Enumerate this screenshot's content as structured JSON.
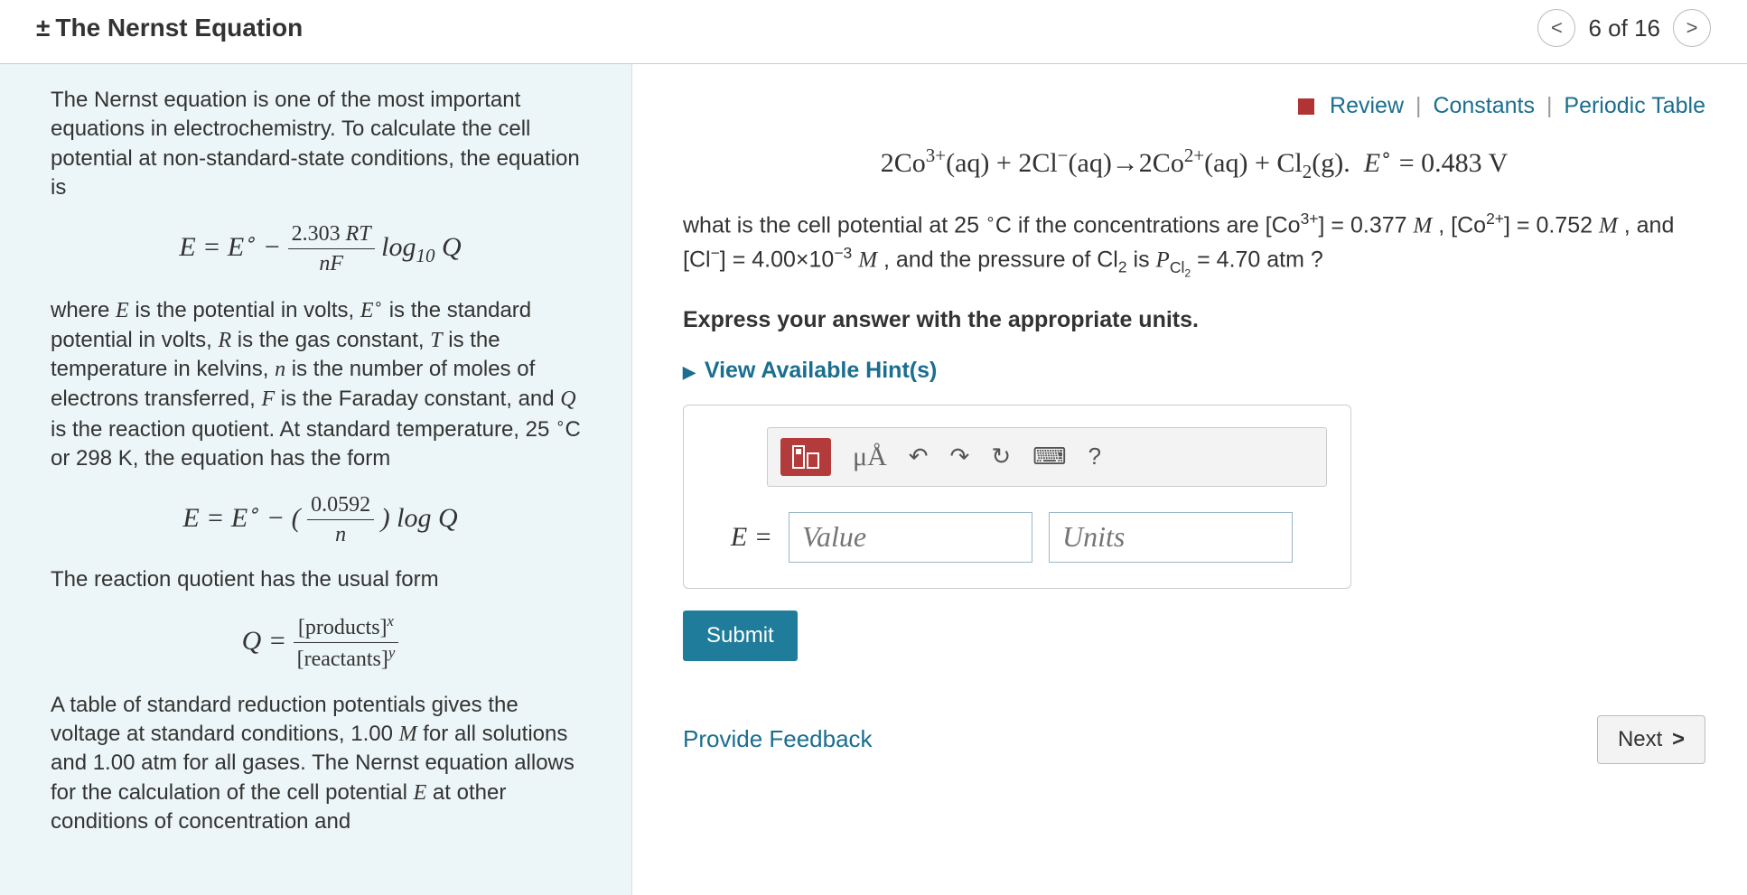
{
  "colors": {
    "panel_bg": "#ecf5f7",
    "link": "#1a6e8e",
    "accent_red": "#b33b3b",
    "submit_bg": "#1f7c9a",
    "border_gray": "#cccccc",
    "text": "#333333",
    "input_border": "#9ab6c6",
    "placeholder": "#aaaaaa"
  },
  "header": {
    "title": "The Nernst Equation",
    "pm_symbol": "±",
    "pager_text": "6 of 16",
    "prev_glyph": "<",
    "next_glyph": ">"
  },
  "left": {
    "intro": "The Nernst equation is one of the most important equations in electrochemistry. To calculate the cell potential at non-standard-state conditions, the equation is",
    "eq1_html": "<span class='serif-i'>E</span> = <span class='serif-i'>E</span><sup>∘</sup> − <span class='frac'><span class='num'>2.303 <span class='serif-i'>RT</span></span><span class='den'><span class='serif-i'>nF</span></span></span> log<sub>10</sub> <span class='serif-i'>Q</span>",
    "para2_html": "where <span class='serif-i'>E</span> is the potential in volts, <span class='serif-i'>E</span><sup>∘</sup> is the standard potential in volts, <span class='serif-i'>R</span> is the gas constant, <span class='serif-i'>T</span> is the temperature in kelvins, <span class='serif-i'>n</span> is the number of moles of electrons transferred, <span class='serif-i'>F</span> is the Faraday constant, and <span class='serif-i'>Q</span> is the reaction quotient. At standard temperature, 25 <sup>∘</sup>C or 298 K, the equation has the form",
    "eq2_html": "<span class='serif-i'>E</span> = <span class='serif-i'>E</span><sup>∘</sup> − ( <span class='frac'><span class='num'>0.0592</span><span class='den'><span class='serif-i'>n</span></span></span> ) log <span class='serif-i'>Q</span>",
    "para3": "The reaction quotient has the usual form",
    "eq3_html": "<span class='serif-i'>Q</span> = <span class='frac'><span class='num'>[products]<sup><span class=\"serif-i\">x</span></sup></span><span class='den'>[reactants]<sup><span class=\"serif-i\">y</span></sup></span></span>",
    "para4_html": "A table of standard reduction potentials gives the voltage at standard conditions, 1.00 <span class='serif-i'>M</span> for all solutions and 1.00 atm for all gases. The Nernst equation allows for the calculation of the cell potential <span class='serif-i'>E</span> at other conditions of concentration and"
  },
  "right": {
    "links": {
      "review": "Review",
      "constants": "Constants",
      "periodic": "Periodic Table",
      "sep": "|"
    },
    "reaction_html": "2Co<sup>3+</sup>(aq) + 2Cl<sup>−</sup>(aq)→2Co<sup>2+</sup>(aq) + Cl<sub>2</sub>(g).&nbsp;&nbsp;<span class='serif-i'>E</span><sup class='roman'>∘</sup> = 0.483 V",
    "question_html": "what is the cell potential at 25 <sup>∘</sup>C if the concentrations are [Co<sup>3+</sup>] = 0.377 <span class='serif-i'>M</span> , [Co<sup>2+</sup>] = 0.752 <span class='serif-i'>M</span> , and [Cl<sup>−</sup>] = 4.00×10<sup>−3</sup> <span class='serif-i'>M</span> , and the pressure of Cl<sub>2</sub> is <span class='serif-i'>P</span><sub>Cl<sub>2</sub></sub> = 4.70 atm ?",
    "instruction": "Express your answer with the appropriate units.",
    "hints_label": "View Available Hint(s)",
    "answer": {
      "prefix": "E =",
      "value_placeholder": "Value",
      "units_placeholder": "Units",
      "mu_a": "μÅ",
      "undo": "↶",
      "redo": "↷",
      "reset": "↻",
      "keyboard": "⌨",
      "help": "?"
    },
    "submit": "Submit",
    "feedback": "Provide Feedback",
    "next": "Next"
  }
}
